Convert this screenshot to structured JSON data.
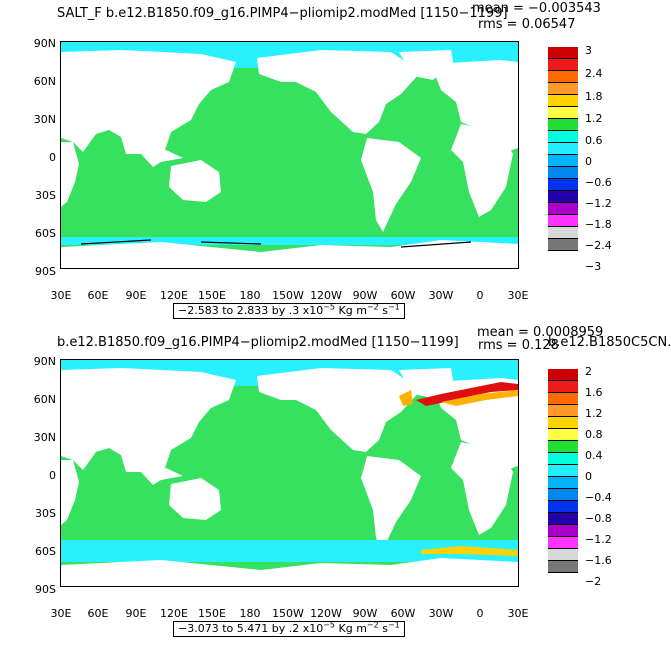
{
  "panels": [
    {
      "title": "SALT_F  b.e12.B1850.f09_g16.PIMP4−pliomip2.modMed  [1150−1199]",
      "mean": "mean = −0.003543",
      "rms": "rms = 0.06547",
      "right_label": "",
      "range": {
        "text": "−2.583 to 2.833 by .3 x10",
        "exp": "−5",
        "units": " Kg m",
        "uexp": "−2",
        "tail": " s",
        "texp": "−1"
      },
      "colorbar_labels": [
        "3",
        "2.4",
        "1.8",
        "1.2",
        "0.6",
        "0",
        "−0.6",
        "−1.2",
        "−1.8",
        "−2.4",
        "−3"
      ]
    },
    {
      "title": "b.e12.B1850.f09_g16.PIMP4−pliomip2.modMed  [1150−1199]",
      "mean": "mean = 0.0008959",
      "rms": "rms = 0.128",
      "right_label": "b.e12.B1850C5CN.",
      "range": {
        "text": "−3.073 to 5.471 by .2 x10",
        "exp": "−5",
        "units": " Kg m",
        "uexp": "−2",
        "tail": " s",
        "texp": "−1"
      },
      "colorbar_labels": [
        "2",
        "1.6",
        "1.2",
        "0.8",
        "0.4",
        "0",
        "−0.4",
        "−0.8",
        "−1.2",
        "−1.6",
        "−2"
      ]
    }
  ],
  "lat_labels": [
    "90N",
    "60N",
    "30N",
    "0",
    "30S",
    "60S",
    "90S"
  ],
  "lon_labels": [
    "30E",
    "60E",
    "90E",
    "120E",
    "150E",
    "180",
    "150W",
    "120W",
    "90W",
    "60W",
    "30W",
    "0",
    "30E"
  ],
  "colorbar_colors": [
    "#cc0000",
    "#ee1a1a",
    "#ff6a00",
    "#ff9a2a",
    "#ffd200",
    "#ffff44",
    "#22dd33",
    "#00ffdd",
    "#22eeff",
    "#00b4ff",
    "#0088ee",
    "#0033ee",
    "#2200aa",
    "#aa00cc",
    "#ff33ff",
    "#d8d8d8",
    "#777777"
  ],
  "colors": {
    "ocean_green": "#35e15f",
    "ocean_cyan": "#29f0ff",
    "land": "#ffffff",
    "positive_hot": "#e01010",
    "positive_warm": "#ffb000"
  }
}
